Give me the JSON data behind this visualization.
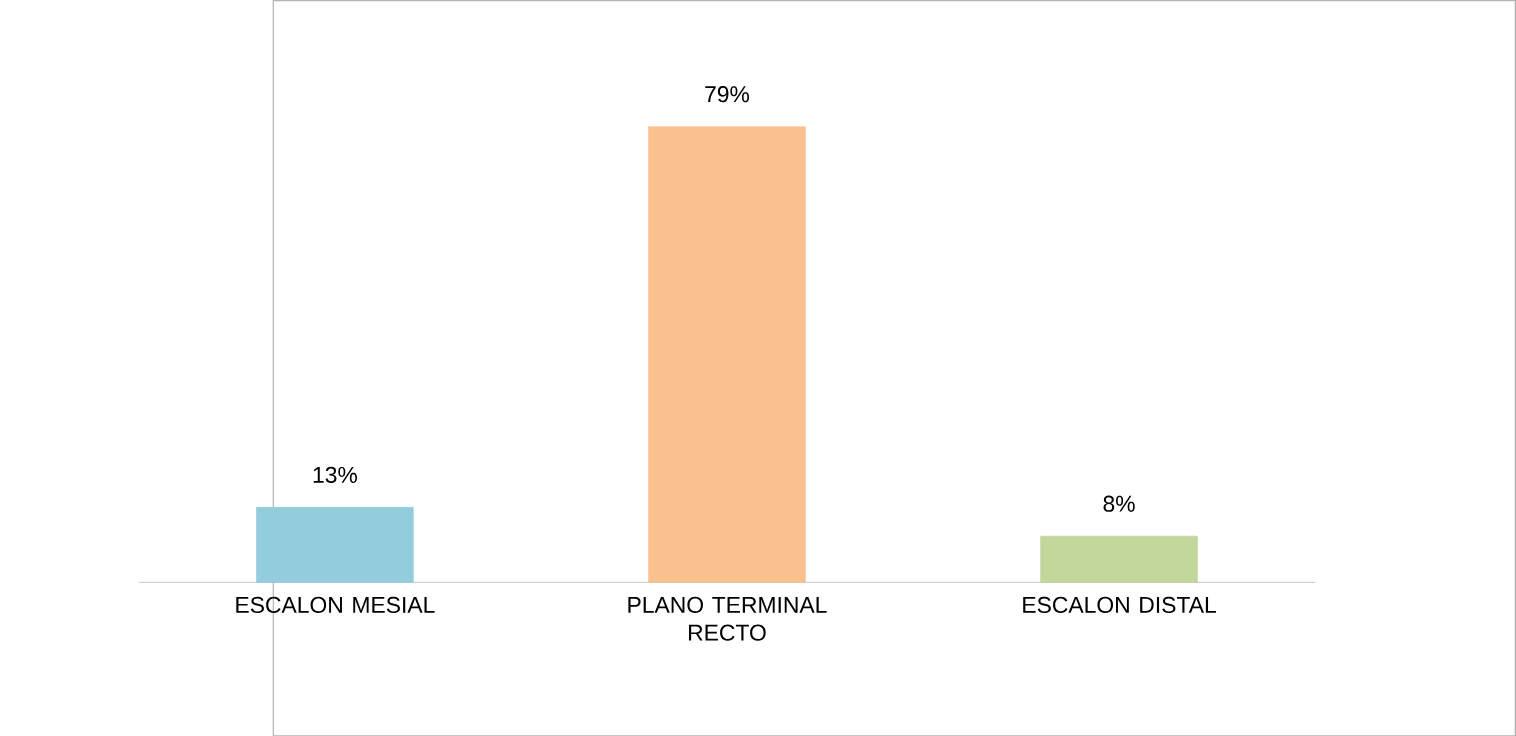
{
  "chart_data": {
    "type": "bar",
    "categories": [
      "ESCALON MESIAL",
      "PLANO TERMINAL RECTO",
      "ESCALON DISTAL"
    ],
    "values": [
      13,
      79,
      8
    ],
    "colors": [
      "#93cddd",
      "#fac090",
      "#c3d69b"
    ],
    "value_labels": [
      "13%",
      "79%",
      "8%"
    ]
  }
}
